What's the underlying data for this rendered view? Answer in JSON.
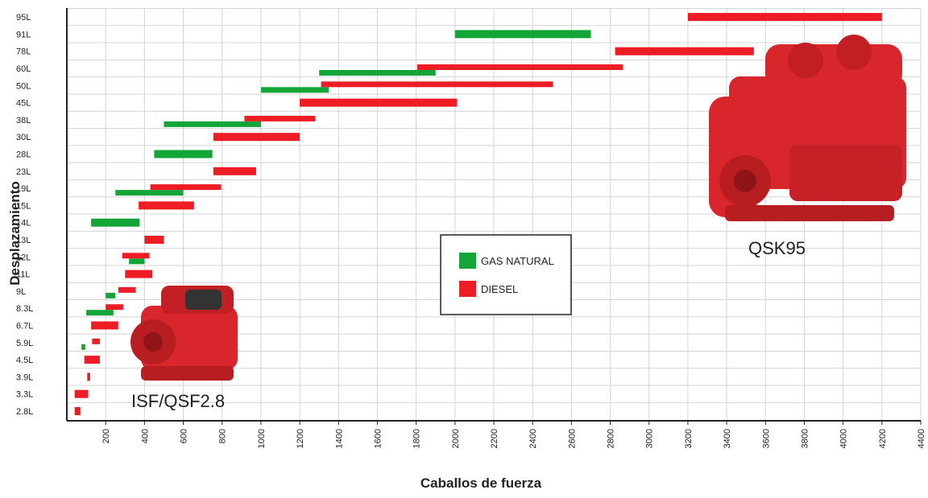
{
  "chart_data": {
    "type": "range-bar",
    "x_label": "Caballos de fuerza",
    "y_label": "Desplazamiento",
    "categories": [
      "2.8L",
      "3.3L",
      "3.9L",
      "4.5L",
      "5.9L",
      "6.7L",
      "8.3L",
      "9L",
      "11L",
      "12L",
      "13L",
      "14L",
      "15L",
      "19L",
      "23L",
      "28L",
      "30L",
      "38L",
      "45L",
      "50L",
      "60L",
      "78L",
      "91L",
      "95L"
    ],
    "series": [
      {
        "name": "GAS NATURAL",
        "color": "#13a538",
        "values": [
          null,
          null,
          null,
          null,
          [
            75,
            95
          ],
          null,
          [
            100,
            240
          ],
          [
            200,
            250
          ],
          null,
          [
            320,
            400
          ],
          null,
          [
            125,
            375
          ],
          null,
          [
            250,
            600
          ],
          null,
          [
            450,
            750
          ],
          null,
          [
            500,
            1000
          ],
          null,
          [
            1000,
            1350
          ],
          [
            1300,
            1900
          ],
          null,
          [
            2000,
            2700
          ],
          null
        ]
      },
      {
        "name": "DIESEL",
        "color": "#ee1c25",
        "values": [
          [
            40,
            70
          ],
          [
            40,
            110
          ],
          [
            105,
            120
          ],
          [
            90,
            170
          ],
          [
            130,
            170
          ],
          [
            125,
            265
          ],
          [
            200,
            290
          ],
          [
            265,
            355
          ],
          [
            300,
            440
          ],
          [
            285,
            425
          ],
          [
            400,
            500
          ],
          null,
          [
            370,
            655
          ],
          [
            430,
            795
          ],
          [
            755,
            975
          ],
          null,
          [
            755,
            1200
          ],
          [
            915,
            1280
          ],
          [
            1200,
            2010
          ],
          [
            1310,
            2505
          ],
          [
            1805,
            2865
          ],
          [
            2825,
            3540
          ],
          null,
          [
            3200,
            4200
          ]
        ]
      }
    ],
    "xlim": [
      0,
      4400
    ],
    "xticks": [
      200,
      400,
      600,
      800,
      1000,
      1200,
      1400,
      1600,
      1800,
      2000,
      2200,
      2400,
      2600,
      2800,
      3000,
      3200,
      3400,
      3600,
      3800,
      4000,
      4200,
      4400
    ],
    "grid": true,
    "annotations": [
      {
        "text": "ISF/QSF2.8"
      },
      {
        "text": "QSK95"
      }
    ]
  }
}
